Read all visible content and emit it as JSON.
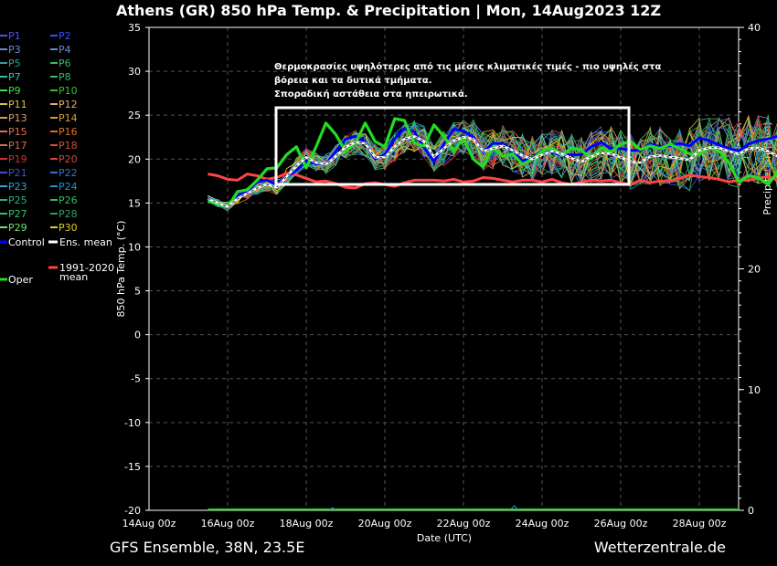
{
  "chart_data": {
    "type": "line",
    "title": "Athens  (GR)  850 hPa Temp. & Precipitation | Mon, 14Aug2023 12Z",
    "ylabel": "850 hPa Temp. (°C)",
    "y2label": "Precipitation (mm)",
    "xlabel": "Date (UTC)",
    "ylim": [
      -20,
      35
    ],
    "y2lim": [
      0,
      40
    ],
    "xlim_days": [
      0,
      15
    ],
    "yticks": [
      "35",
      "30",
      "25",
      "20",
      "15",
      "10",
      "5",
      "0",
      "-5",
      "-10",
      "-15",
      "-20"
    ],
    "y2ticks": [
      "40",
      "30",
      "20",
      "10",
      "0"
    ],
    "x_tick_labels": [
      "14Aug 00z",
      "16Aug 00z",
      "18Aug 00z",
      "20Aug 00z",
      "22Aug 00z",
      "24Aug 00z",
      "26Aug 00z",
      "28Aug 00z"
    ],
    "grid": true,
    "x_start": "2023-08-15T12:00Z",
    "x_step_hours": 6,
    "series": [
      {
        "name": "Ens. mean",
        "color": "#ffffff",
        "values": [
          15.5,
          15.0,
          14.6,
          15.5,
          16.1,
          16.7,
          17.1,
          16.8,
          18.0,
          19.2,
          20.2,
          19.6,
          19.4,
          20.3,
          21.4,
          21.9,
          21.8,
          20.2,
          20.2,
          21.4,
          22.3,
          22.6,
          22.0,
          20.3,
          21.2,
          22.1,
          22.5,
          22.3,
          20.9,
          21.2,
          21.5,
          21.0,
          20.4,
          20.0,
          20.5,
          20.9,
          20.6,
          20.1,
          19.7,
          20.3,
          20.7,
          20.6,
          20.2,
          19.7,
          19.6,
          20.3,
          20.4,
          20.2,
          20.1,
          19.9,
          21.0,
          21.3,
          21.3,
          20.9,
          20.6,
          21.2,
          21.3,
          20.9,
          20.3,
          20.8,
          21.1,
          20.6,
          20.1,
          20.5
        ]
      },
      {
        "name": "Control",
        "color": "#0000ff",
        "values": [
          15.6,
          14.9,
          14.4,
          15.9,
          16.3,
          17.4,
          17.6,
          17.1,
          18.0,
          18.7,
          19.8,
          19.5,
          19.4,
          20.9,
          22.3,
          22.6,
          21.9,
          20.0,
          20.5,
          22.3,
          23.5,
          23.1,
          21.3,
          19.7,
          21.7,
          23.4,
          23.2,
          22.5,
          20.8,
          21.8,
          21.8,
          20.8,
          19.8,
          20.1,
          21.0,
          20.8,
          20.4,
          20.5,
          20.5,
          21.4,
          21.9,
          21.2,
          21.2,
          21.0,
          21.0,
          21.7,
          21.4,
          21.5,
          21.8,
          21.5,
          22.4,
          22.1,
          21.6,
          21.2,
          20.9,
          21.7,
          22.1,
          22.3,
          22.6,
          21.6,
          22.1,
          21.9,
          22.0,
          22.3
        ]
      },
      {
        "name": "Oper",
        "color": "#22dd22",
        "values": [
          15.2,
          14.9,
          14.5,
          16.3,
          16.5,
          17.6,
          18.9,
          19.0,
          20.5,
          21.4,
          19.0,
          21.4,
          24.1,
          22.8,
          20.9,
          21.8,
          24.1,
          22.0,
          21.4,
          24.6,
          24.4,
          21.8,
          21.5,
          23.9,
          22.6,
          20.9,
          22.4,
          20.0,
          19.1,
          21.4,
          20.3,
          20.6,
          19.4,
          20.0,
          20.9,
          21.3,
          20.4,
          21.3,
          21.0,
          20.1,
          21.3,
          20.8,
          21.7,
          22.0,
          21.1,
          21.5,
          21.2,
          21.7,
          21.2,
          20.6,
          20.5,
          21.3,
          20.9,
          19.6,
          17.4,
          18.1,
          17.9,
          17.1,
          18.6,
          20.0,
          19.5,
          19.1,
          18.6,
          19.8
        ]
      },
      {
        "name": "1991-2020 mean",
        "color": "#ff4444",
        "values": [
          18.3,
          18.1,
          17.7,
          17.6,
          18.3,
          18.1,
          17.7,
          17.9,
          18.4,
          18.2,
          17.8,
          17.4,
          17.5,
          17.2,
          16.8,
          16.7,
          17.2,
          17.3,
          17.1,
          16.9,
          17.3,
          17.6,
          17.6,
          17.6,
          17.5,
          17.7,
          17.4,
          17.5,
          17.9,
          17.8,
          17.6,
          17.4,
          17.6,
          17.6,
          17.4,
          17.7,
          17.3,
          17.1,
          17.4,
          17.6,
          17.5,
          17.6,
          17.3,
          17.1,
          17.6,
          17.3,
          17.5,
          17.5,
          17.8,
          18.2,
          18.0,
          17.9,
          17.7,
          17.4,
          17.6,
          17.6,
          17.8,
          18.0,
          17.6,
          17.8,
          17.5,
          16.9,
          16.5,
          17.5
        ]
      }
    ],
    "members": [
      "P1",
      "P2",
      "P3",
      "P4",
      "P5",
      "P6",
      "P7",
      "P8",
      "P9",
      "P10",
      "P11",
      "P12",
      "P13",
      "P14",
      "P15",
      "P16",
      "P17",
      "P18",
      "P19",
      "P20",
      "P21",
      "P22",
      "P23",
      "P24",
      "P25",
      "P26",
      "P27",
      "P28",
      "P29",
      "P30"
    ],
    "member_colors": [
      "#5050ff",
      "#3050ff",
      "#6a8bd0",
      "#6a8bd0",
      "#30a0a0",
      "#30c060",
      "#30c0b0",
      "#30c060",
      "#40e040",
      "#30c030",
      "#e0c040",
      "#e0b060",
      "#d0a060",
      "#e0a020",
      "#e07050",
      "#e07020",
      "#d07050",
      "#d05030",
      "#d03030",
      "#e04040",
      "#4050d0",
      "#3070e0",
      "#30a0e0",
      "#2090d0",
      "#30b080",
      "#30c060",
      "#30c070",
      "#30a060",
      "#70e070",
      "#e0d020"
    ],
    "legend_labels": {
      "control": "Control",
      "ens_mean": "Ens. mean",
      "climatology": "1991-2020\nmean",
      "oper": "Oper"
    },
    "annotations": [
      "Θερμοκρασίες υψηλότερες από τις μέσες κλιματικές τιμές - πιο υψηλές στα",
      "βόρεια και τα δυτικά τμήματα.",
      "Σποραδική αστάθεια στα ηπειρωτικά."
    ],
    "highlight_box_color": "#ffffff",
    "footer_left": "GFS Ensemble, 38N, 23.5E",
    "footer_right": "Wetterzentrale.de",
    "background_color": "#000000",
    "grid_color": "#555555"
  }
}
